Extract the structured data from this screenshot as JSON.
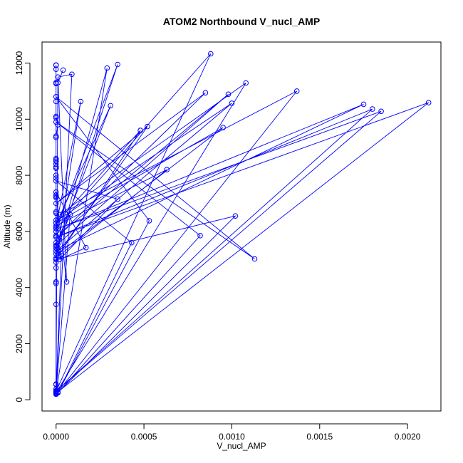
{
  "chart_data": {
    "type": "line",
    "title": "ATOM2 Northbound V_nucl_AMP",
    "xlabel": "V_nucl_AMP",
    "ylabel": "Altitude (m)",
    "xlim": [
      -8e-05,
      0.00219
    ],
    "ylim": [
      -400,
      12750
    ],
    "x_ticks": [
      0,
      0.0005,
      0.001,
      0.0015,
      0.002
    ],
    "x_tick_labels": [
      "0.0000",
      "0.0005",
      "0.0010",
      "0.0015",
      "0.0020"
    ],
    "y_ticks": [
      0,
      2000,
      4000,
      6000,
      8000,
      10000,
      12000
    ],
    "y_tick_labels": [
      "0",
      "2000",
      "4000",
      "6000",
      "8000",
      "10000",
      "12000"
    ],
    "grid": false,
    "legend": "none",
    "series_color": "#0000ff",
    "marker": "open-circle",
    "series": [
      {
        "x": [
          0.0,
          0.0,
          0.0,
          0.0,
          0.0,
          1e-05,
          0.0,
          0.0,
          0.0,
          0.0,
          0.0,
          0.0,
          0.0,
          0.0,
          0.0,
          0.0,
          0.0,
          0.0,
          0.0,
          0.0,
          0.0,
          0.0,
          0.0,
          0.0,
          0.0,
          0.0,
          0.0,
          0.0,
          0.0,
          0.0,
          0.0,
          0.0,
          0.0,
          0.0,
          0.0,
          0.0,
          0.0,
          0.0,
          0.0,
          0.0,
          0.0,
          0.0,
          0.0,
          0.0,
          0.0,
          0.0,
          0.0,
          0.0,
          0.0,
          0.0,
          0.0,
          0.0,
          0.0
        ],
        "y": [
          11930,
          11780,
          11300,
          10630,
          10100,
          9800,
          9400,
          8600,
          8500,
          8400,
          8300,
          8000,
          7900,
          7300,
          7200,
          6700,
          6400,
          6300,
          6100,
          6000,
          5800,
          5600,
          5500,
          5400,
          5300,
          5200,
          5050,
          4900,
          4700,
          4200,
          3400,
          560,
          380,
          320,
          270,
          250,
          220,
          11920,
          11270,
          10050,
          9350,
          8550,
          8250,
          7250,
          6650,
          6150,
          5850,
          5450,
          5000,
          4150,
          540,
          300,
          200
        ]
      },
      {
        "x": [
          4e-05,
          1e-05,
          0.0,
          0.00088,
          0.0,
          0.00035,
          1e-05,
          0.00029,
          0.0,
          0.00108,
          2e-05,
          0.00137,
          1e-05,
          0.00212,
          0.0,
          0.0018,
          0.0,
          0.00185,
          1e-05,
          0.00175,
          0.0,
          0.001,
          1e-05,
          0.00031,
          0.0,
          0.00098,
          2e-05,
          0.00085,
          0.0,
          0.00052,
          1e-05,
          0.00095,
          0.0,
          0.00048,
          1e-05,
          0.00063,
          0.0,
          0.00014,
          0.0,
          0.00102,
          1e-05,
          0.00082,
          0.0,
          0.00113,
          0.0,
          0.00053,
          1e-05,
          0.00043,
          0.0,
          0.00035,
          2e-05,
          0.00017,
          0.0,
          6e-05,
          1e-05,
          9e-05,
          0.0,
          8e-05,
          1e-05,
          3e-05,
          0.0
        ],
        "y": [
          11750,
          11300,
          300,
          12330,
          6100,
          11950,
          5400,
          11820,
          250,
          11290,
          6600,
          11000,
          280,
          10590,
          5800,
          10360,
          300,
          10280,
          6100,
          10530,
          5300,
          10570,
          6400,
          10480,
          5500,
          10890,
          5900,
          10940,
          7000,
          9740,
          5200,
          9700,
          6300,
          9600,
          5100,
          8200,
          6200,
          10630,
          5000,
          6550,
          250,
          5850,
          9900,
          5020,
          10800,
          6380,
          250,
          5600,
          7800,
          7150,
          5000,
          5420,
          7400,
          4200,
          11500,
          11600,
          260,
          6600,
          5550,
          5200,
          220
        ]
      }
    ]
  }
}
